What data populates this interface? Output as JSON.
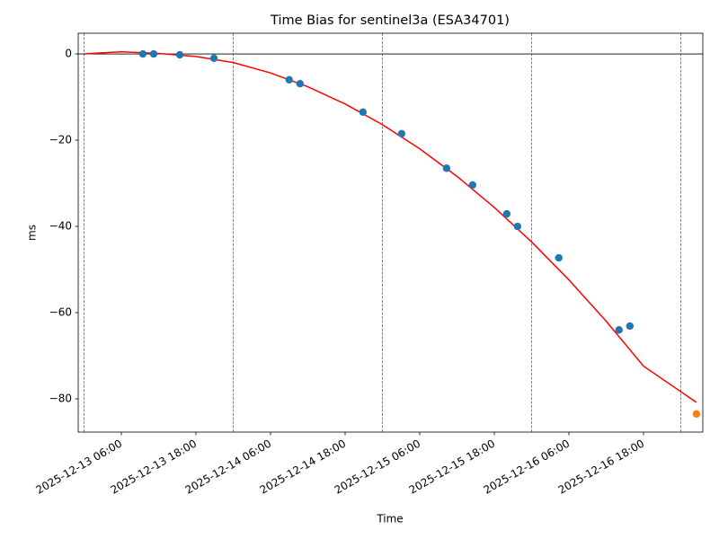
{
  "chart_data": {
    "type": "scatter",
    "title": "Time Bias for sentinel3a (ESA34701)",
    "xlabel": "Time",
    "ylabel": "ms",
    "xlim": [
      "2025-12-12T23:04",
      "2025-12-17T03:32"
    ],
    "xticks": [
      {
        "value": "2025-12-13T06:00",
        "label": "2025-12-13 06:00"
      },
      {
        "value": "2025-12-13T18:00",
        "label": "2025-12-13 18:00"
      },
      {
        "value": "2025-12-14T06:00",
        "label": "2025-12-14 06:00"
      },
      {
        "value": "2025-12-14T18:00",
        "label": "2025-12-14 18:00"
      },
      {
        "value": "2025-12-15T06:00",
        "label": "2025-12-15 06:00"
      },
      {
        "value": "2025-12-15T18:00",
        "label": "2025-12-15 18:00"
      },
      {
        "value": "2025-12-16T06:00",
        "label": "2025-12-16 06:00"
      },
      {
        "value": "2025-12-16T18:00",
        "label": "2025-12-16 18:00"
      }
    ],
    "ylim": [
      -87.7,
      4.8
    ],
    "yticks": [
      {
        "value": -80,
        "label": "−80"
      },
      {
        "value": -60,
        "label": "−60"
      },
      {
        "value": -40,
        "label": "−40"
      },
      {
        "value": -20,
        "label": "−20"
      },
      0
    ],
    "hline": 0,
    "vlines": [
      "2025-12-13T00:00",
      "2025-12-14T00:00",
      "2025-12-15T00:00",
      "2025-12-16T00:00",
      "2025-12-17T00:00"
    ],
    "vline_color": "#1f77b4",
    "series": [
      {
        "style": "line",
        "color": "#ff0000",
        "x": [
          "2025-12-13T00:00",
          "2025-12-13T06:00",
          "2025-12-13T12:00",
          "2025-12-13T18:00",
          "2025-12-14T00:00",
          "2025-12-14T06:00",
          "2025-12-14T12:00",
          "2025-12-14T18:00",
          "2025-12-15T00:00",
          "2025-12-15T06:00",
          "2025-12-15T12:00",
          "2025-12-15T18:00",
          "2025-12-16T00:00",
          "2025-12-16T06:00",
          "2025-12-16T12:00",
          "2025-12-16T18:00",
          "2025-12-17T02:30"
        ],
        "values": [
          0,
          0.5,
          0.1,
          -0.6,
          -2.0,
          -4.4,
          -7.6,
          -11.6,
          -16.4,
          -22.0,
          -28.4,
          -35.6,
          -43.6,
          -52.4,
          -62.0,
          -72.4,
          -80.8
        ]
      },
      {
        "style": "markers",
        "color": "#1f77b4",
        "x": [
          "2025-12-13T09:28",
          "2025-12-13T11:12",
          "2025-12-13T15:24",
          "2025-12-13T20:54",
          "2025-12-14T09:00",
          "2025-12-14T10:45",
          "2025-12-14T20:52",
          "2025-12-15T03:05",
          "2025-12-15T10:19",
          "2025-12-15T14:30",
          "2025-12-15T20:00",
          "2025-12-15T21:44",
          "2025-12-16T04:22",
          "2025-12-16T14:03",
          "2025-12-16T15:48"
        ],
        "values": [
          0,
          0,
          -0.2,
          -1.0,
          -6.0,
          -6.9,
          -13.5,
          -18.5,
          -26.5,
          -30.4,
          -37.1,
          -40.0,
          -47.3,
          -64.0,
          -63.1
        ]
      },
      {
        "style": "markers",
        "color": "#ff7f0e",
        "x": [
          "2025-12-17T02:30"
        ],
        "values": [
          -83.5
        ]
      }
    ]
  }
}
